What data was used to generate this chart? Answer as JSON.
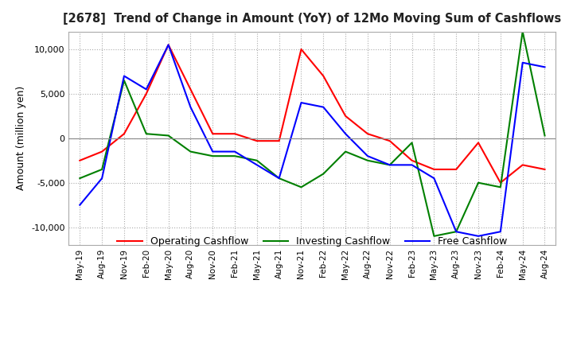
{
  "title": "[2678]  Trend of Change in Amount (YoY) of 12Mo Moving Sum of Cashflows",
  "ylabel": "Amount (million yen)",
  "ylim": [
    -12000,
    12000
  ],
  "yticks": [
    -10000,
    -5000,
    0,
    5000,
    10000
  ],
  "x_labels": [
    "May-19",
    "Aug-19",
    "Nov-19",
    "Feb-20",
    "May-20",
    "Aug-20",
    "Nov-20",
    "Feb-21",
    "May-21",
    "Aug-21",
    "Nov-21",
    "Feb-22",
    "May-22",
    "Aug-22",
    "Nov-22",
    "Feb-23",
    "May-23",
    "Aug-23",
    "Nov-23",
    "Feb-24",
    "May-24",
    "Aug-24"
  ],
  "operating": [
    -2500,
    -1500,
    500,
    5000,
    10500,
    5500,
    500,
    500,
    -300,
    -300,
    10000,
    7000,
    2500,
    500,
    -300,
    -2500,
    -3500,
    -3500,
    -500,
    -5000,
    -3000,
    -3500
  ],
  "investing": [
    -4500,
    -3500,
    6500,
    500,
    300,
    -1500,
    -2000,
    -2000,
    -2500,
    -4500,
    -5500,
    -4000,
    -1500,
    -2500,
    -3000,
    -500,
    -11000,
    -10500,
    -5000,
    -5500,
    12000,
    300
  ],
  "free": [
    -7500,
    -4500,
    7000,
    5500,
    10500,
    3500,
    -1500,
    -1500,
    -3000,
    -4500,
    4000,
    3500,
    500,
    -2000,
    -3000,
    -3000,
    -4500,
    -10500,
    -11000,
    -10500,
    8500,
    8000
  ],
  "operating_color": "#ff0000",
  "investing_color": "#008000",
  "free_color": "#0000ff",
  "bg_color": "#ffffff",
  "grid_color": "#aaaaaa"
}
